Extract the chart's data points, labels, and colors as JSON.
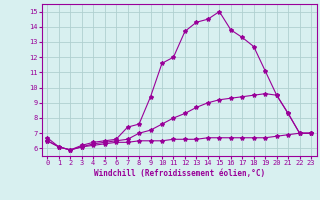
{
  "line1_x": [
    0,
    1,
    2,
    3,
    4,
    5,
    6,
    7,
    8,
    9,
    10,
    11,
    12,
    13,
    14,
    15,
    16,
    17,
    18,
    19,
    20,
    21,
    22,
    23
  ],
  "line1_y": [
    6.7,
    6.1,
    5.9,
    6.2,
    6.4,
    6.5,
    6.6,
    7.4,
    7.6,
    9.4,
    11.6,
    12.0,
    13.7,
    14.3,
    14.5,
    15.0,
    13.8,
    13.3,
    12.7,
    11.1,
    9.5,
    8.3,
    7.0,
    7.0
  ],
  "line2_x": [
    0,
    1,
    2,
    3,
    4,
    5,
    6,
    7,
    8,
    9,
    10,
    11,
    12,
    13,
    14,
    15,
    16,
    17,
    18,
    19,
    20,
    21,
    22,
    23
  ],
  "line2_y": [
    6.5,
    6.1,
    5.9,
    6.1,
    6.3,
    6.4,
    6.5,
    6.6,
    7.0,
    7.2,
    7.6,
    8.0,
    8.3,
    8.7,
    9.0,
    9.2,
    9.3,
    9.4,
    9.5,
    9.6,
    9.5,
    8.3,
    7.0,
    7.0
  ],
  "line3_x": [
    0,
    1,
    2,
    3,
    4,
    5,
    6,
    7,
    8,
    9,
    10,
    11,
    12,
    13,
    14,
    15,
    16,
    17,
    18,
    19,
    20,
    21,
    22,
    23
  ],
  "line3_y": [
    6.5,
    6.1,
    5.9,
    6.1,
    6.2,
    6.3,
    6.4,
    6.4,
    6.5,
    6.5,
    6.5,
    6.6,
    6.6,
    6.6,
    6.7,
    6.7,
    6.7,
    6.7,
    6.7,
    6.7,
    6.8,
    6.9,
    7.0,
    7.0
  ],
  "line_color": "#990099",
  "marker": "*",
  "bg_color": "#d8f0f0",
  "grid_color": "#b0d0d0",
  "xlabel": "Windchill (Refroidissement éolien,°C)",
  "xlabel_color": "#990099",
  "xlim": [
    -0.5,
    23.5
  ],
  "ylim": [
    5.5,
    15.5
  ],
  "yticks": [
    6,
    7,
    8,
    9,
    10,
    11,
    12,
    13,
    14,
    15
  ],
  "xticks": [
    0,
    1,
    2,
    3,
    4,
    5,
    6,
    7,
    8,
    9,
    10,
    11,
    12,
    13,
    14,
    15,
    16,
    17,
    18,
    19,
    20,
    21,
    22,
    23
  ],
  "tick_fontsize": 5.0,
  "xlabel_fontsize": 5.5
}
